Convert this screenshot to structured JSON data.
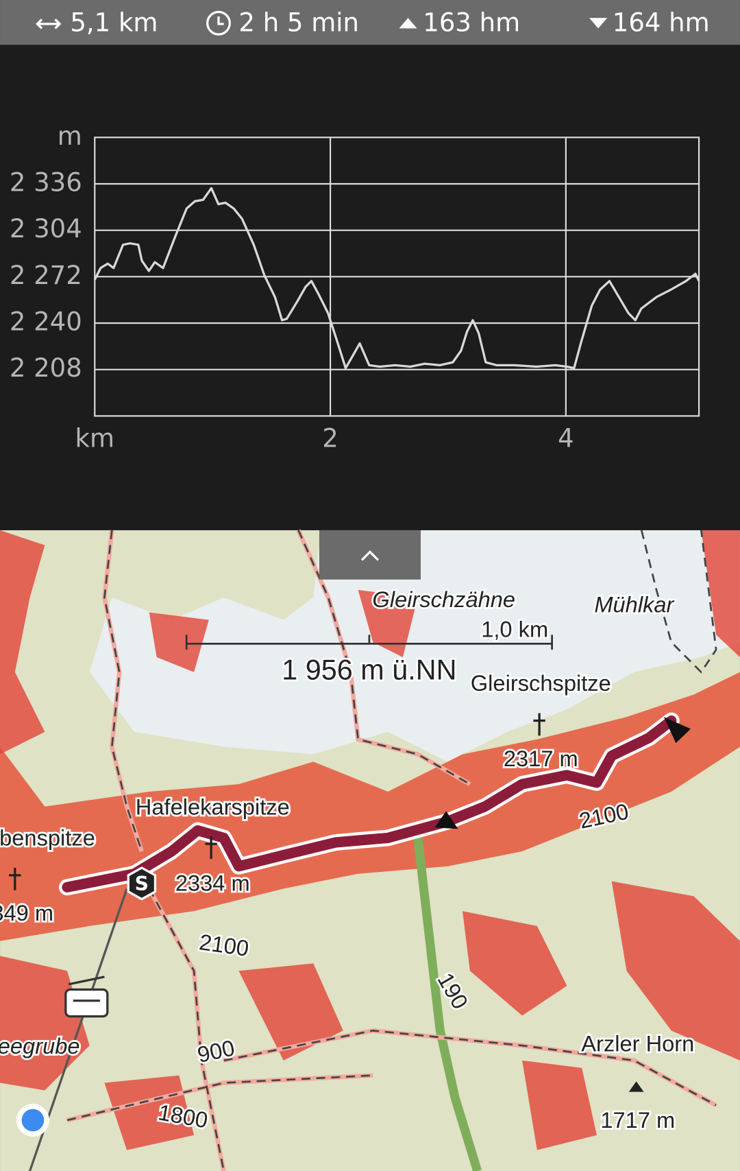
{
  "stats": {
    "distance": "5,1 km",
    "duration": "2 h 5 min",
    "ascent": "163 hm",
    "descent": "164 hm"
  },
  "chart_data": {
    "type": "line",
    "y_label": "m",
    "x_label": "km",
    "x": [
      0,
      0.05,
      0.11,
      0.16,
      0.24,
      0.3,
      0.37,
      0.4,
      0.46,
      0.51,
      0.58,
      0.68,
      0.78,
      0.85,
      0.92,
      0.99,
      1.05,
      1.11,
      1.18,
      1.25,
      1.35,
      1.44,
      1.53,
      1.59,
      1.63,
      1.72,
      1.79,
      1.84,
      1.9,
      1.98,
      2.06,
      2.13,
      2.18,
      2.25,
      2.33,
      2.42,
      2.55,
      2.68,
      2.8,
      2.93,
      3.04,
      3.11,
      3.16,
      3.21,
      3.26,
      3.32,
      3.41,
      3.56,
      3.75,
      3.91,
      4.01,
      4.07,
      4.13,
      4.22,
      4.29,
      4.37,
      4.45,
      4.53,
      4.59,
      4.64,
      4.77,
      4.89,
      5.02,
      5.1,
      5.13
    ],
    "series": [
      {
        "color": "#d9d9d9",
        "values": [
          2270,
          2278,
          2281,
          2278,
          2294,
          2295,
          2294,
          2283,
          2276,
          2282,
          2278,
          2299,
          2319,
          2324,
          2325,
          2333,
          2322,
          2323,
          2319,
          2312,
          2294,
          2273,
          2258,
          2242,
          2243,
          2255,
          2265,
          2269,
          2260,
          2247,
          2227,
          2209,
          2216,
          2226,
          2211,
          2210,
          2211,
          2210,
          2212,
          2211,
          2213,
          2221,
          2234,
          2242,
          2233,
          2213,
          2211,
          2211,
          2210,
          2211,
          2210,
          2209,
          2227,
          2252,
          2263,
          2269,
          2258,
          2247,
          2242,
          2250,
          2258,
          2263,
          2269,
          2274,
          2269
        ]
      }
    ],
    "xlim": [
      0,
      5.13
    ],
    "ylim": [
      2176,
      2368
    ],
    "xticks": [
      2,
      4
    ],
    "yticks": [
      {
        "value": 2208,
        "label": "2 208"
      },
      {
        "value": 2240,
        "label": "2 240"
      },
      {
        "value": 2272,
        "label": "2 272"
      },
      {
        "value": 2304,
        "label": "2 304"
      },
      {
        "value": 2336,
        "label": "2 336"
      }
    ],
    "grid": true
  },
  "map": {
    "scale": "1,0 km",
    "elevation": "1 956 m ü.NN",
    "labels": [
      "Gleirschzähne",
      "Mühlkar",
      "Gleirschspitze",
      "2317 m",
      "2100",
      "Hafelekarspitze",
      "ubenspitze",
      "2334 m",
      "349 m",
      "2100",
      "eegrube",
      "900",
      "1800",
      "190",
      "Arzler Horn",
      "1717 m"
    ]
  }
}
